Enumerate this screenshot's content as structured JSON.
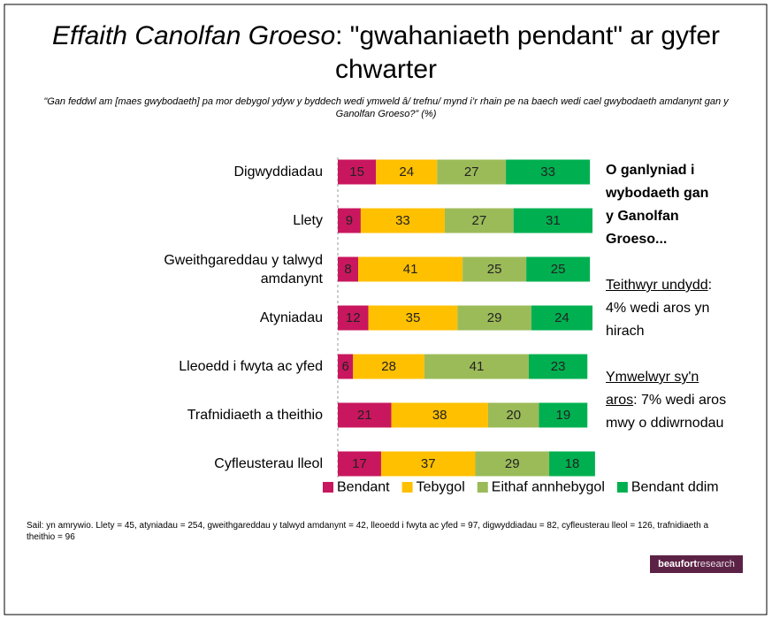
{
  "title_italic": "Effaith Canolfan Groeso",
  "title_rest": ": \"gwahaniaeth pendant\" ar gyfer chwarter",
  "subtitle": "\"Gan feddwl am [maes gwybodaeth] pa mor debygol ydyw y byddech wedi ymweld â/ trefnu/ mynd i’r rhain pe na baech wedi cael gwybodaeth amdanynt gan y Ganolfan Groeso?” (%)",
  "chart_data": {
    "type": "stacked-bar-horizontal",
    "categories": [
      "Digwyddiadau",
      "Llety",
      "Gweithgareddau y talwyd amdanynt",
      "Atyniadau",
      "Lleoedd i fwyta ac yfed",
      "Trafnidiaeth a theithio",
      "Cyfleusterau lleol"
    ],
    "xlim": [
      0,
      100
    ],
    "series": [
      {
        "name": "Bendant",
        "color": "#c8175e",
        "values": [
          15,
          9,
          8,
          12,
          6,
          21,
          17
        ]
      },
      {
        "name": "Tebygol",
        "color": "#ffc000",
        "values": [
          24,
          33,
          41,
          35,
          28,
          38,
          37
        ]
      },
      {
        "name": "Eithaf annhebygol",
        "color": "#9bbb59",
        "values": [
          27,
          27,
          25,
          29,
          41,
          20,
          29
        ]
      },
      {
        "name": "Bendant ddim",
        "color": "#00b050",
        "values": [
          33,
          31,
          25,
          24,
          23,
          19,
          18
        ]
      }
    ]
  },
  "side_note": {
    "heading": "O ganlyniad i wybodaeth gan y Ganolfan Groeso...",
    "groups": [
      {
        "label": "Teithwyr undydd",
        "text": ": 4% wedi aros yn hirach"
      },
      {
        "label": "Ymwelwyr sy'n aros",
        "text": ": 7% wedi aros mwy o ddiwrnodau"
      }
    ]
  },
  "footnote": "Sail: yn amrywio. Llety = 45, atyniadau = 254, gweithgareddau y talwyd amdanynt = 42, lleoedd i fwyta ac yfed = 97, digwyddiadau = 82, cyfleusterau lleol = 126, trafnidiaeth a theithio = 96",
  "logo": {
    "bold": "beaufort",
    "light": "research"
  }
}
